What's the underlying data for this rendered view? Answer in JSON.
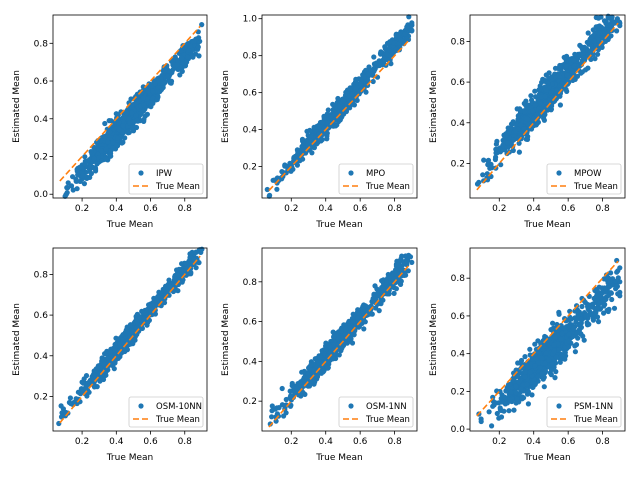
{
  "colors": {
    "points": "#1f77b4",
    "line": "#ff7f0e",
    "axes": "#000000",
    "legend_border": "#cccccc"
  },
  "chart_data": [
    {
      "type": "scatter",
      "title": "",
      "xlabel": "True Mean",
      "ylabel": "Estimated Mean",
      "xlim": [
        0.03,
        0.93
      ],
      "ylim": [
        -0.02,
        0.95
      ],
      "xticks": [
        0.2,
        0.4,
        0.6,
        0.8
      ],
      "yticks": [
        0.0,
        0.2,
        0.4,
        0.6,
        0.8
      ],
      "legend": {
        "position": "lower-right",
        "entries": [
          "IPW",
          "True Mean"
        ]
      },
      "series": [
        {
          "name": "IPW",
          "kind": "scatter",
          "trend": {
            "slope": 1.03,
            "intercept": -0.09
          },
          "spread": 0.035,
          "n": 900
        },
        {
          "name": "True Mean",
          "kind": "line",
          "x": [
            0.07,
            0.89
          ],
          "y": [
            0.07,
            0.89
          ]
        }
      ]
    },
    {
      "type": "scatter",
      "title": "",
      "xlabel": "True Mean",
      "ylabel": "Estimated Mean",
      "xlim": [
        0.03,
        0.93
      ],
      "ylim": [
        0.03,
        1.02
      ],
      "xticks": [
        0.2,
        0.4,
        0.6,
        0.8
      ],
      "yticks": [
        0.2,
        0.4,
        0.6,
        0.8,
        1.0
      ],
      "legend": {
        "position": "lower-right",
        "entries": [
          "MPO",
          "True Mean"
        ]
      },
      "series": [
        {
          "name": "MPO",
          "kind": "scatter",
          "trend": {
            "slope": 1.06,
            "intercept": 0.0
          },
          "spread": 0.025,
          "n": 900
        },
        {
          "name": "True Mean",
          "kind": "line",
          "x": [
            0.07,
            0.89
          ],
          "y": [
            0.07,
            0.89
          ]
        }
      ]
    },
    {
      "type": "scatter",
      "title": "",
      "xlabel": "True Mean",
      "ylabel": "Estimated Mean",
      "xlim": [
        0.03,
        0.93
      ],
      "ylim": [
        0.03,
        0.93
      ],
      "xticks": [
        0.2,
        0.4,
        0.6,
        0.8
      ],
      "yticks": [
        0.2,
        0.4,
        0.6,
        0.8
      ],
      "legend": {
        "position": "lower-right",
        "entries": [
          "MPOW",
          "True Mean"
        ]
      },
      "series": [
        {
          "name": "MPOW",
          "kind": "scatter",
          "trend": {
            "slope": 0.96,
            "intercept": 0.07
          },
          "spread": 0.04,
          "n": 900
        },
        {
          "name": "True Mean",
          "kind": "line",
          "x": [
            0.07,
            0.89
          ],
          "y": [
            0.07,
            0.89
          ]
        }
      ]
    },
    {
      "type": "scatter",
      "title": "",
      "xlabel": "True Mean",
      "ylabel": "Estimated Mean",
      "xlim": [
        0.03,
        0.93
      ],
      "ylim": [
        0.03,
        0.93
      ],
      "xticks": [
        0.2,
        0.4,
        0.6,
        0.8
      ],
      "yticks": [
        0.2,
        0.4,
        0.6,
        0.8
      ],
      "legend": {
        "position": "lower-right",
        "entries": [
          "OSM-10NN",
          "True Mean"
        ]
      },
      "series": [
        {
          "name": "OSM-10NN",
          "kind": "scatter",
          "trend": {
            "slope": 1.0,
            "intercept": 0.02
          },
          "spread": 0.022,
          "n": 900
        },
        {
          "name": "True Mean",
          "kind": "line",
          "x": [
            0.07,
            0.89
          ],
          "y": [
            0.07,
            0.89
          ]
        }
      ]
    },
    {
      "type": "scatter",
      "title": "",
      "xlabel": "True Mean",
      "ylabel": "Estimated Mean",
      "xlim": [
        0.03,
        0.93
      ],
      "ylim": [
        0.05,
        0.97
      ],
      "xticks": [
        0.2,
        0.4,
        0.6,
        0.8
      ],
      "yticks": [
        0.2,
        0.4,
        0.6,
        0.8
      ],
      "legend": {
        "position": "lower-right",
        "entries": [
          "OSM-1NN",
          "True Mean"
        ]
      },
      "series": [
        {
          "name": "OSM-1NN",
          "kind": "scatter",
          "trend": {
            "slope": 1.0,
            "intercept": 0.02
          },
          "spread": 0.028,
          "n": 900
        },
        {
          "name": "True Mean",
          "kind": "line",
          "x": [
            0.07,
            0.89
          ],
          "y": [
            0.07,
            0.89
          ]
        }
      ]
    },
    {
      "type": "scatter",
      "title": "",
      "xlabel": "True Mean",
      "ylabel": "Estimated Mean",
      "xlim": [
        0.03,
        0.93
      ],
      "ylim": [
        -0.01,
        0.96
      ],
      "xticks": [
        0.2,
        0.4,
        0.6,
        0.8
      ],
      "yticks": [
        0.0,
        0.2,
        0.4,
        0.6,
        0.8
      ],
      "legend": {
        "position": "lower-right",
        "entries": [
          "PSM-1NN",
          "True Mean"
        ]
      },
      "series": [
        {
          "name": "PSM-1NN",
          "kind": "scatter",
          "trend": {
            "slope": 0.95,
            "intercept": -0.06
          },
          "spread": 0.05,
          "n": 900
        },
        {
          "name": "True Mean",
          "kind": "line",
          "x": [
            0.07,
            0.89
          ],
          "y": [
            0.07,
            0.89
          ]
        }
      ]
    }
  ]
}
